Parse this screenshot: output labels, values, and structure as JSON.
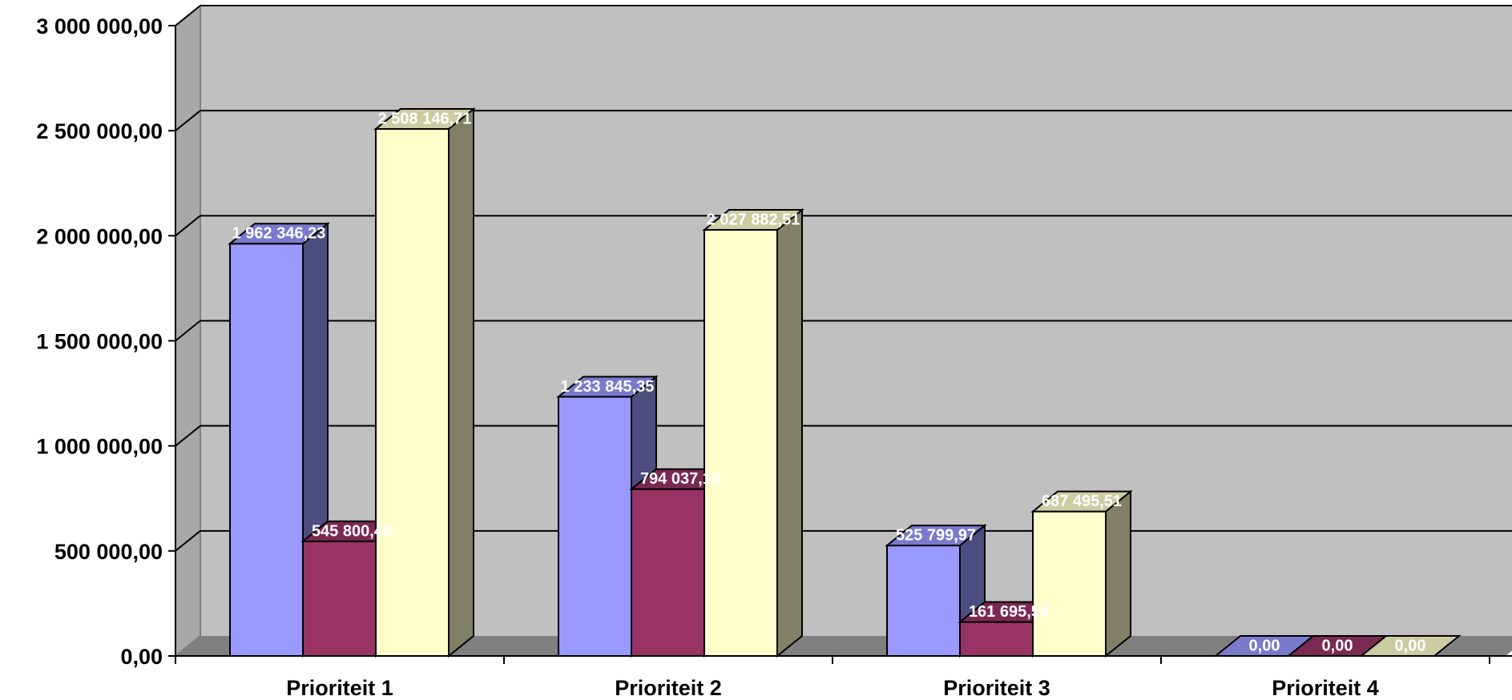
{
  "chart_data": {
    "type": "bar",
    "style": "3d-clustered-column",
    "categories": [
      "Prioriteit 1",
      "Prioriteit 2",
      "Prioriteit 3",
      "Prioriteit 4"
    ],
    "series": [
      {
        "values": [
          1962346.23,
          1233845.35,
          525799.97,
          0
        ],
        "labels": [
          "1 962 346,23",
          "1 233 845,35",
          "525 799,97",
          "0,00"
        ],
        "color": "#9999ff",
        "side_color": "#4d4d80",
        "top_color": "#7a7acc"
      },
      {
        "values": [
          545800.48,
          794037.16,
          161695.54,
          0
        ],
        "labels": [
          "545 800,48",
          "794 037,16",
          "161 695,54",
          "0,00"
        ],
        "color": "#993366",
        "side_color": "#4d1a33",
        "top_color": "#7a2952"
      },
      {
        "values": [
          2508146.71,
          2027882.51,
          687495.51,
          0
        ],
        "labels": [
          "2 508 146,71",
          "2 027 882,51",
          "687 495,51",
          "0,00"
        ],
        "color": "#ffffcc",
        "side_color": "#808066",
        "top_color": "#ccccA3"
      }
    ],
    "ylim": [
      0,
      3000000
    ],
    "yticks": [
      {
        "value": 0,
        "label": "0,00"
      },
      {
        "value": 500000,
        "label": "500 000,00"
      },
      {
        "value": 1000000,
        "label": "1 000 000,00"
      },
      {
        "value": 1500000,
        "label": "1 500 000,00"
      },
      {
        "value": 2000000,
        "label": "2 000 000,00"
      },
      {
        "value": 2500000,
        "label": "2 500 000,00"
      },
      {
        "value": 3000000,
        "label": "3 000 000,00"
      }
    ],
    "title": "",
    "xlabel": "",
    "ylabel": "",
    "grid": true,
    "legend": "none",
    "colors": {
      "wall": "#c0c0c0",
      "floor": "#808080"
    }
  }
}
